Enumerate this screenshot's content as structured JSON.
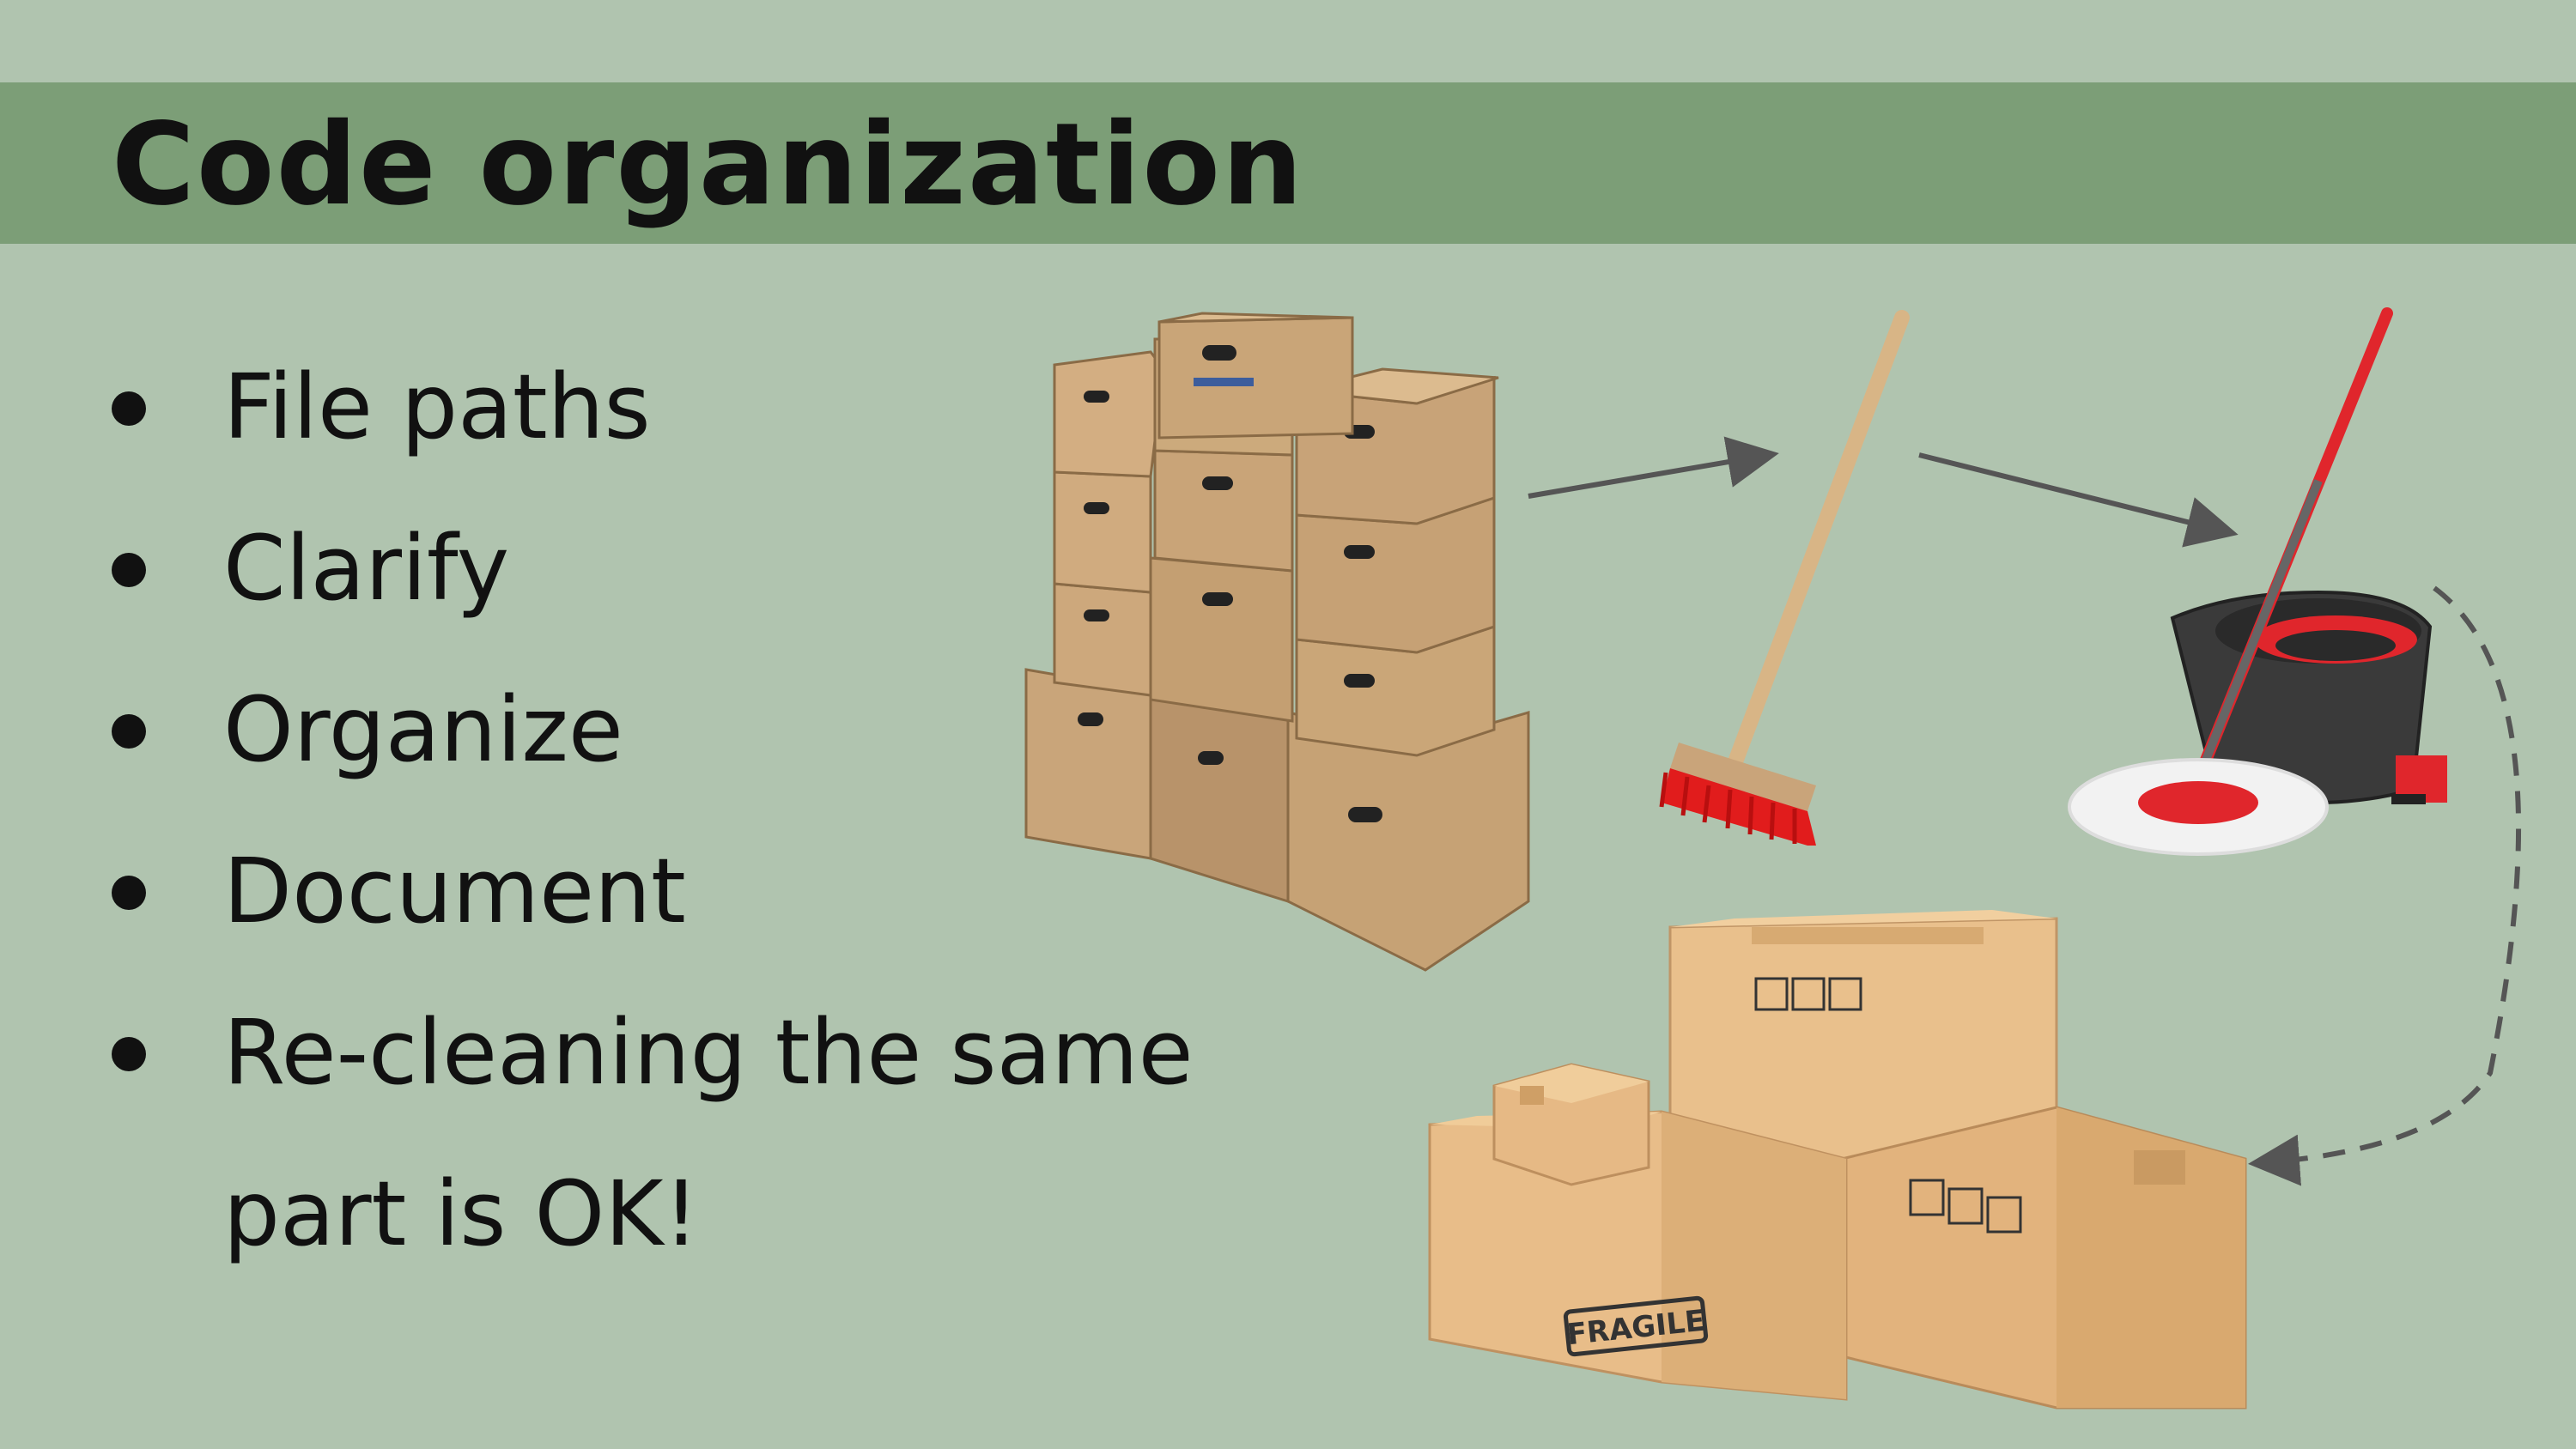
{
  "slide": {
    "title": "Code organization",
    "bullets": [
      {
        "text": "File paths"
      },
      {
        "text": "Clarify"
      },
      {
        "text": "Organize"
      },
      {
        "text": "Document"
      },
      {
        "text": "Re-cleaning the same"
      }
    ],
    "bullet_continuation": "part is OK!"
  },
  "illustrations": {
    "messy_boxes": {
      "icon": "stacked-archive-boxes-icon"
    },
    "broom": {
      "icon": "broom-icon"
    },
    "mop": {
      "icon": "mop-bucket-icon"
    },
    "organized_boxes": {
      "icon": "shipping-boxes-icon",
      "label": "FRAGILE"
    },
    "arrows": [
      "arrow-icon",
      "arrow-icon",
      "dashed-curved-arrow-icon"
    ]
  },
  "colors": {
    "background": "#b0c4af",
    "title_bar": "#7c9e77",
    "text": "#111111",
    "arrow": "#555555"
  }
}
